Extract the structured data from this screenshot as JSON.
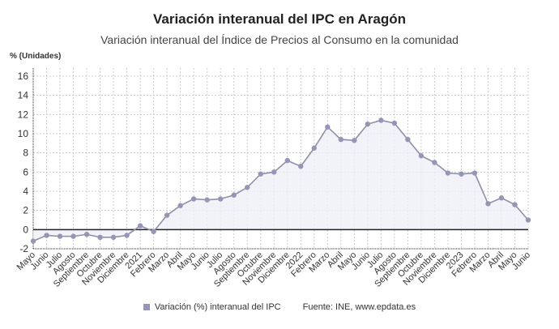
{
  "chart_data": {
    "type": "area",
    "title": "Variación interanual del IPC en Aragón",
    "subtitle": "Variación interanual del Índice de Precios al Consumo en la comunidad",
    "ylabel": "% (Unidades)",
    "xlabel": "",
    "ylim": [
      -2,
      16
    ],
    "yticks": [
      -2,
      0,
      2,
      4,
      6,
      8,
      10,
      12,
      14,
      16
    ],
    "grid": true,
    "legend_placement": "bottom",
    "categories": [
      "Mayo",
      "Junio",
      "Julio",
      "Agosto",
      "Septiembre",
      "Octubre",
      "Noviembre",
      "Diciembre",
      "2021",
      "Febrero",
      "Marzo",
      "Abril",
      "Mayo",
      "Junio",
      "Julio",
      "Agosto",
      "Septiembre",
      "Octubre",
      "Noviembre",
      "Diciembre",
      "2022",
      "Febrero",
      "Marzo",
      "Abril",
      "Mayo",
      "Junio",
      "Julio",
      "Agosto",
      "Septiembre",
      "Octubre",
      "Noviembre",
      "Diciembre",
      "2023",
      "Febrero",
      "Marzo",
      "Abril",
      "Mayo",
      "Junio"
    ],
    "series": [
      {
        "name": "Variación (%) interanual del IPC",
        "color": "#9596b5",
        "values": [
          -1.2,
          -0.6,
          -0.7,
          -0.7,
          -0.5,
          -0.8,
          -0.8,
          -0.6,
          0.4,
          -0.2,
          1.5,
          2.5,
          3.2,
          3.1,
          3.2,
          3.6,
          4.4,
          5.8,
          6.0,
          7.2,
          6.6,
          8.5,
          10.7,
          9.4,
          9.3,
          11.0,
          11.4,
          11.1,
          9.4,
          7.7,
          7.0,
          5.9,
          5.8,
          5.9,
          2.7,
          3.3,
          2.6,
          1.0
        ]
      }
    ]
  },
  "source": "Fuente: INE, www.epdata.es"
}
